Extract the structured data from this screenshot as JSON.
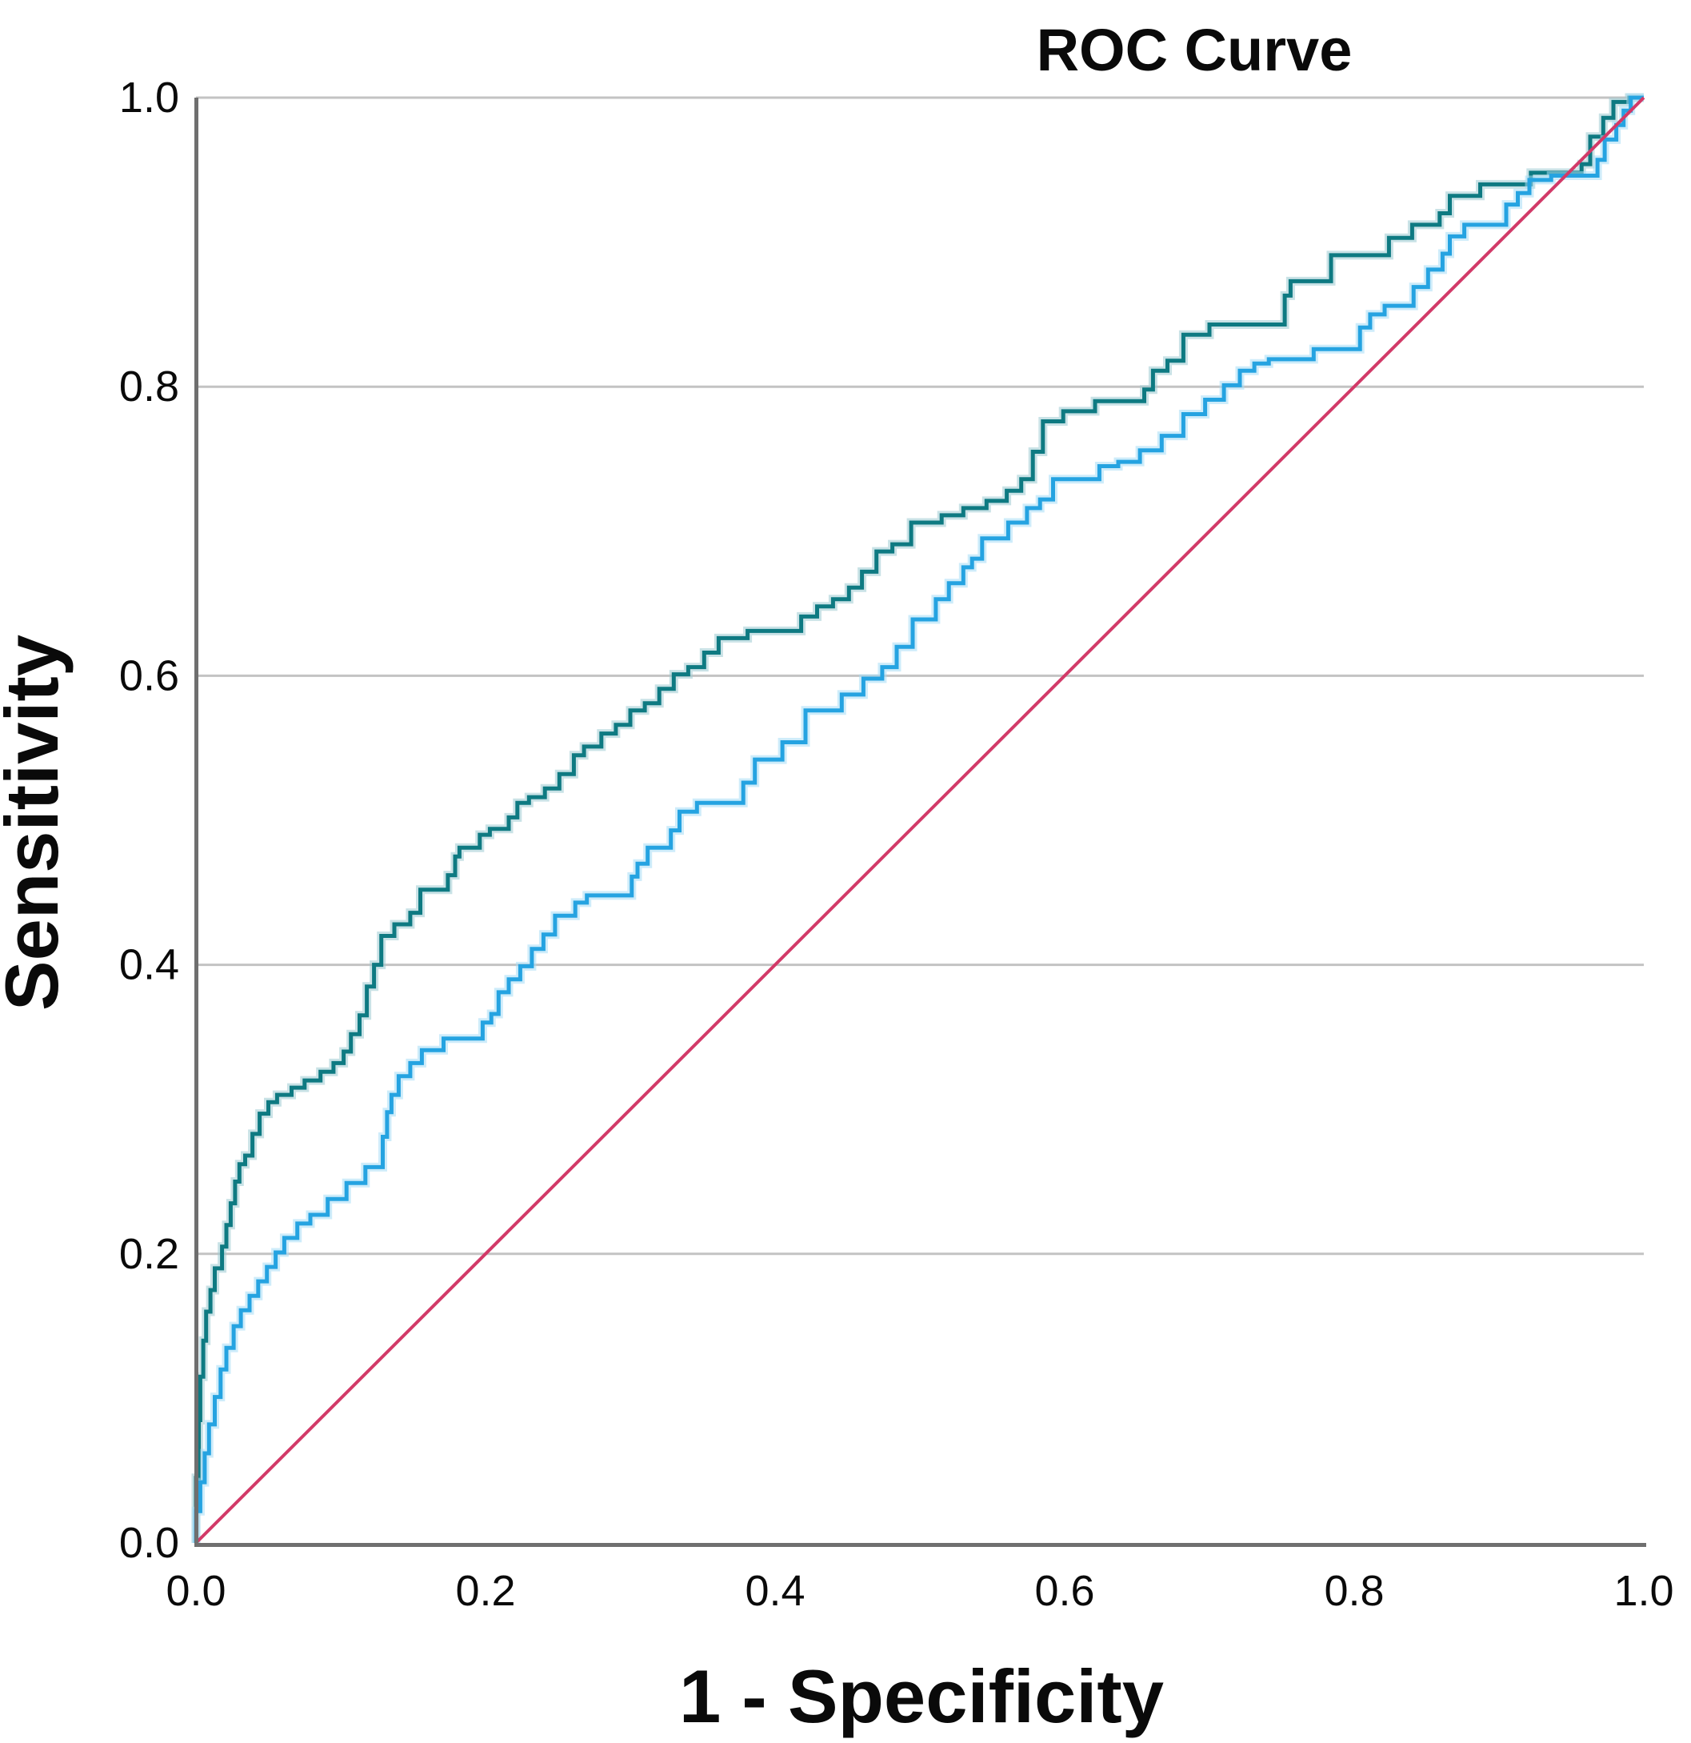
{
  "title": "ROC Curve",
  "chart_data": {
    "type": "line",
    "title": "ROC Curve",
    "xlabel": "1 - Specificity",
    "ylabel": "Sensitivity",
    "xlim": [
      0,
      1
    ],
    "ylim": [
      0,
      1
    ],
    "x_tick_labels": [
      "0.0",
      "0.2",
      "0.4",
      "0.6",
      "0.8",
      "1.0"
    ],
    "y_tick_labels": [
      "0.0",
      "0.2",
      "0.4",
      "0.6",
      "0.8",
      "1.0"
    ],
    "grid": "horizontal gridlines at 0.2 0.4 0.6 0.8 1.0",
    "legend_position": "none",
    "colors": {
      "gridline": "#c3c3c3",
      "axis_line": "#6f6f6f",
      "curve1": "#0e7a82",
      "curve1_halo": "#9ccbd1",
      "curve2": "#25a3e1",
      "curve2_halo": "#a5dcf5",
      "reference": "#d23a68",
      "text": "#0a0a0a"
    },
    "series": [
      {
        "name": "roc-curve-1",
        "description": "dark teal step ROC curve (higher AUC)",
        "color": "#0e7a82",
        "halo": "#9ccbd1",
        "interpolation": "step-vertical-first",
        "points": [
          [
            0.0,
            0.0
          ],
          [
            0.002,
            0.045
          ],
          [
            0.003,
            0.085
          ],
          [
            0.005,
            0.115
          ],
          [
            0.007,
            0.14
          ],
          [
            0.01,
            0.16
          ],
          [
            0.013,
            0.175
          ],
          [
            0.018,
            0.19
          ],
          [
            0.021,
            0.205
          ],
          [
            0.024,
            0.22
          ],
          [
            0.027,
            0.235
          ],
          [
            0.03,
            0.25
          ],
          [
            0.034,
            0.262
          ],
          [
            0.039,
            0.268
          ],
          [
            0.044,
            0.283
          ],
          [
            0.05,
            0.297
          ],
          [
            0.056,
            0.305
          ],
          [
            0.066,
            0.31
          ],
          [
            0.075,
            0.315
          ],
          [
            0.086,
            0.32
          ],
          [
            0.095,
            0.326
          ],
          [
            0.102,
            0.332
          ],
          [
            0.107,
            0.34
          ],
          [
            0.113,
            0.352
          ],
          [
            0.118,
            0.365
          ],
          [
            0.123,
            0.385
          ],
          [
            0.128,
            0.4
          ],
          [
            0.137,
            0.42
          ],
          [
            0.148,
            0.428
          ],
          [
            0.155,
            0.436
          ],
          [
            0.174,
            0.452
          ],
          [
            0.179,
            0.462
          ],
          [
            0.182,
            0.475
          ],
          [
            0.196,
            0.481
          ],
          [
            0.203,
            0.49
          ],
          [
            0.216,
            0.494
          ],
          [
            0.222,
            0.502
          ],
          [
            0.23,
            0.512
          ],
          [
            0.241,
            0.516
          ],
          [
            0.251,
            0.522
          ],
          [
            0.261,
            0.532
          ],
          [
            0.268,
            0.545
          ],
          [
            0.28,
            0.551
          ],
          [
            0.29,
            0.56
          ],
          [
            0.3,
            0.566
          ],
          [
            0.31,
            0.576
          ],
          [
            0.32,
            0.581
          ],
          [
            0.33,
            0.591
          ],
          [
            0.34,
            0.601
          ],
          [
            0.351,
            0.606
          ],
          [
            0.361,
            0.616
          ],
          [
            0.381,
            0.626
          ],
          [
            0.418,
            0.631
          ],
          [
            0.429,
            0.641
          ],
          [
            0.44,
            0.648
          ],
          [
            0.451,
            0.653
          ],
          [
            0.46,
            0.661
          ],
          [
            0.47,
            0.672
          ],
          [
            0.481,
            0.686
          ],
          [
            0.494,
            0.691
          ],
          [
            0.515,
            0.706
          ],
          [
            0.53,
            0.711
          ],
          [
            0.546,
            0.716
          ],
          [
            0.56,
            0.721
          ],
          [
            0.57,
            0.728
          ],
          [
            0.578,
            0.736
          ],
          [
            0.585,
            0.755
          ],
          [
            0.599,
            0.776
          ],
          [
            0.621,
            0.783
          ],
          [
            0.655,
            0.79
          ],
          [
            0.661,
            0.798
          ],
          [
            0.671,
            0.811
          ],
          [
            0.682,
            0.818
          ],
          [
            0.7,
            0.836
          ],
          [
            0.752,
            0.843
          ],
          [
            0.756,
            0.863
          ],
          [
            0.784,
            0.873
          ],
          [
            0.824,
            0.891
          ],
          [
            0.84,
            0.903
          ],
          [
            0.859,
            0.912
          ],
          [
            0.866,
            0.92
          ],
          [
            0.887,
            0.932
          ],
          [
            0.922,
            0.94
          ],
          [
            0.957,
            0.948
          ],
          [
            0.963,
            0.954
          ],
          [
            0.972,
            0.973
          ],
          [
            0.979,
            0.986
          ],
          [
            0.99,
            0.997
          ],
          [
            1.0,
            1.0
          ]
        ]
      },
      {
        "name": "roc-curve-2",
        "description": "light blue step ROC curve (lower AUC)",
        "color": "#25a3e1",
        "halo": "#a5dcf5",
        "interpolation": "step-vertical-first",
        "points": [
          [
            0.0,
            0.0
          ],
          [
            0.003,
            0.022
          ],
          [
            0.006,
            0.042
          ],
          [
            0.009,
            0.062
          ],
          [
            0.013,
            0.082
          ],
          [
            0.017,
            0.101
          ],
          [
            0.021,
            0.12
          ],
          [
            0.026,
            0.135
          ],
          [
            0.031,
            0.15
          ],
          [
            0.037,
            0.161
          ],
          [
            0.043,
            0.171
          ],
          [
            0.049,
            0.181
          ],
          [
            0.055,
            0.191
          ],
          [
            0.061,
            0.201
          ],
          [
            0.07,
            0.211
          ],
          [
            0.079,
            0.221
          ],
          [
            0.091,
            0.227
          ],
          [
            0.104,
            0.238
          ],
          [
            0.117,
            0.249
          ],
          [
            0.129,
            0.26
          ],
          [
            0.132,
            0.281
          ],
          [
            0.135,
            0.298
          ],
          [
            0.14,
            0.31
          ],
          [
            0.148,
            0.323
          ],
          [
            0.156,
            0.332
          ],
          [
            0.171,
            0.341
          ],
          [
            0.198,
            0.349
          ],
          [
            0.204,
            0.36
          ],
          [
            0.209,
            0.366
          ],
          [
            0.216,
            0.381
          ],
          [
            0.224,
            0.39
          ],
          [
            0.232,
            0.399
          ],
          [
            0.24,
            0.411
          ],
          [
            0.248,
            0.421
          ],
          [
            0.262,
            0.434
          ],
          [
            0.27,
            0.443
          ],
          [
            0.301,
            0.448
          ],
          [
            0.305,
            0.461
          ],
          [
            0.312,
            0.47
          ],
          [
            0.328,
            0.481
          ],
          [
            0.334,
            0.493
          ],
          [
            0.346,
            0.506
          ],
          [
            0.378,
            0.512
          ],
          [
            0.386,
            0.526
          ],
          [
            0.405,
            0.542
          ],
          [
            0.421,
            0.554
          ],
          [
            0.446,
            0.576
          ],
          [
            0.461,
            0.587
          ],
          [
            0.474,
            0.598
          ],
          [
            0.484,
            0.606
          ],
          [
            0.495,
            0.62
          ],
          [
            0.511,
            0.639
          ],
          [
            0.52,
            0.653
          ],
          [
            0.53,
            0.664
          ],
          [
            0.536,
            0.675
          ],
          [
            0.543,
            0.681
          ],
          [
            0.561,
            0.695
          ],
          [
            0.574,
            0.706
          ],
          [
            0.583,
            0.716
          ],
          [
            0.592,
            0.722
          ],
          [
            0.624,
            0.736
          ],
          [
            0.637,
            0.745
          ],
          [
            0.652,
            0.748
          ],
          [
            0.667,
            0.756
          ],
          [
            0.682,
            0.766
          ],
          [
            0.697,
            0.781
          ],
          [
            0.71,
            0.791
          ],
          [
            0.721,
            0.801
          ],
          [
            0.731,
            0.811
          ],
          [
            0.741,
            0.816
          ],
          [
            0.772,
            0.819
          ],
          [
            0.804,
            0.826
          ],
          [
            0.811,
            0.841
          ],
          [
            0.821,
            0.85
          ],
          [
            0.841,
            0.856
          ],
          [
            0.851,
            0.869
          ],
          [
            0.861,
            0.881
          ],
          [
            0.866,
            0.892
          ],
          [
            0.876,
            0.904
          ],
          [
            0.905,
            0.912
          ],
          [
            0.913,
            0.926
          ],
          [
            0.921,
            0.934
          ],
          [
            0.936,
            0.943
          ],
          [
            0.968,
            0.946
          ],
          [
            0.973,
            0.957
          ],
          [
            0.981,
            0.971
          ],
          [
            0.986,
            0.981
          ],
          [
            0.991,
            0.991
          ],
          [
            1.0,
            1.0
          ]
        ]
      },
      {
        "name": "reference-line",
        "description": "diagonal chance reference line",
        "color": "#d23a68",
        "interpolation": "linear",
        "points": [
          [
            0.0,
            0.0
          ],
          [
            1.0,
            1.0
          ]
        ]
      }
    ]
  }
}
